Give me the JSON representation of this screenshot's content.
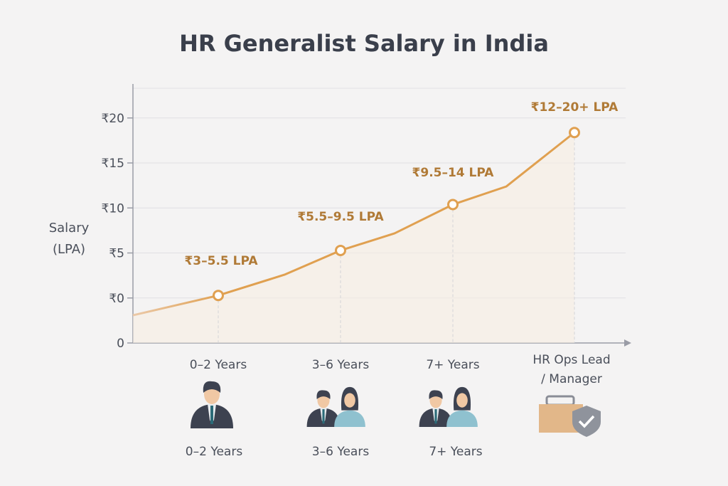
{
  "chart_data": {
    "type": "line",
    "title": "HR Generalist Salary in India",
    "ylabel": [
      "Salary",
      "(LPA)"
    ],
    "y_tick_labels": [
      "0",
      "₹0",
      "₹5",
      "₹10",
      "₹15",
      "₹20"
    ],
    "grid": "horizontal",
    "categories": [
      "0–2 Years",
      "3–6 Years",
      "7+ Years",
      "HR Ops Lead / Manager"
    ],
    "category_label_lines": [
      [
        "0–2 Years"
      ],
      [
        "3–6 Years"
      ],
      [
        "7+ Years"
      ],
      [
        "HR Ops Lead",
        "/ Manager"
      ]
    ],
    "bottom_labels": [
      "0–2 Years",
      "3–6 Years",
      "7+ Years"
    ],
    "icons": [
      "person-icon",
      "couple-icon",
      "couple-icon",
      "briefcase-shield-icon"
    ],
    "points": [
      {
        "category": "0–2 Years",
        "value": 0.3,
        "label": "₹3–5.5 LPA"
      },
      {
        "category": "3–6 Years",
        "value": 5.3,
        "label": "₹5.5–9.5 LPA"
      },
      {
        "category": "7+ Years",
        "value": 10.4,
        "label": "₹9.5–14 LPA"
      },
      {
        "category": "HR Ops Lead / Manager",
        "value": 18.4,
        "label": "₹12–20+ LPA"
      }
    ],
    "line_color": "#e0a050",
    "label_color": "#b07a36"
  }
}
